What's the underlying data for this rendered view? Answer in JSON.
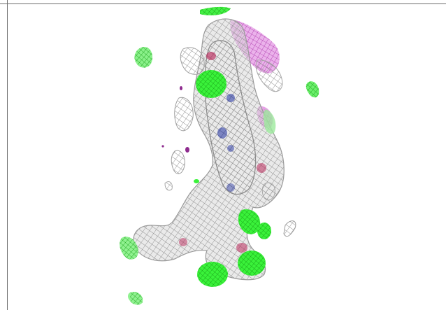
{
  "viewer": {
    "background": "#ffffff",
    "frame_color": "#6e6e6e",
    "mesh_colors": {
      "density_map": "#9a9a9a",
      "positive_difference": "#22ee22",
      "ligand_surface": "#cc44cc",
      "nitrogen": "#1f2fa0",
      "oxygen": "#b8285a"
    },
    "icons": [
      "density-mesh-icon",
      "difference-blob-icon"
    ]
  }
}
